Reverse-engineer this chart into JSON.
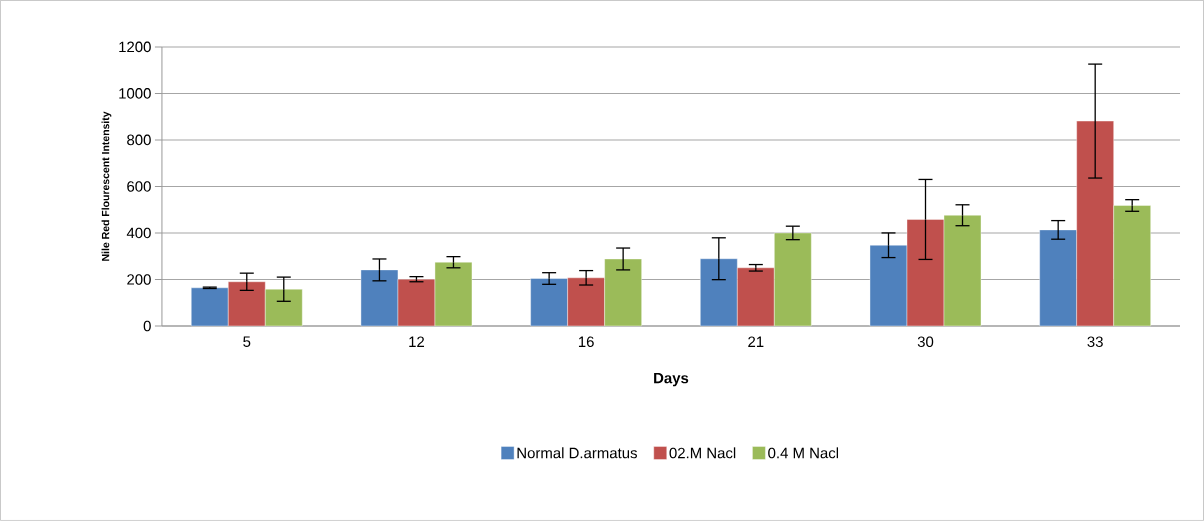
{
  "chart_data": {
    "type": "bar",
    "xlabel": "Days",
    "ylabel": "Nile Red Flourescent Intensity",
    "categories": [
      "5",
      "12",
      "16",
      "21",
      "30",
      "33"
    ],
    "series": [
      {
        "name": "Normal D.armatus",
        "color": "#4f81bd",
        "values": [
          164,
          241,
          204,
          289,
          347,
          413
        ],
        "errors": [
          3,
          47,
          25,
          90,
          53,
          40
        ]
      },
      {
        "name": "02.M Nacl",
        "color": "#c0504d",
        "values": [
          190,
          201,
          207,
          250,
          458,
          881
        ],
        "errors": [
          37,
          11,
          31,
          14,
          172,
          245
        ]
      },
      {
        "name": "0.4 M Nacl",
        "color": "#9bbb59",
        "values": [
          158,
          274,
          288,
          400,
          476,
          518
        ],
        "errors": [
          52,
          24,
          47,
          29,
          45,
          25
        ]
      }
    ],
    "ylim": [
      0,
      1200
    ],
    "yticks": [
      0,
      200,
      400,
      600,
      800,
      1000,
      1200
    ],
    "grid": "y",
    "legend": "bottom"
  }
}
